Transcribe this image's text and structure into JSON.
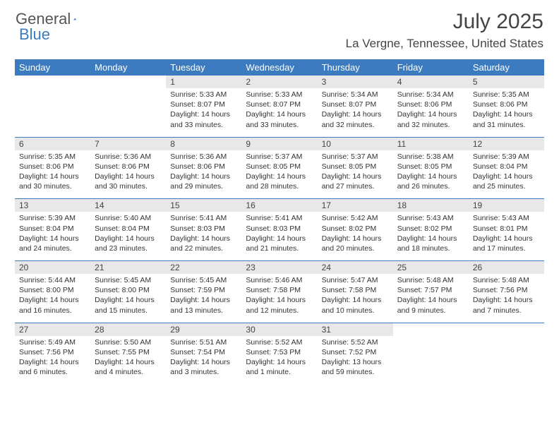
{
  "logo": {
    "text_a": "General",
    "text_b": "Blue"
  },
  "title": "July 2025",
  "location": "La Vergne, Tennessee, United States",
  "colors": {
    "header_bg": "#3c7bbf",
    "header_text": "#ffffff",
    "date_bg": "#e8e8e8",
    "rule": "#3c7bbf",
    "body_text": "#333333",
    "title_text": "#444444"
  },
  "day_names": [
    "Sunday",
    "Monday",
    "Tuesday",
    "Wednesday",
    "Thursday",
    "Friday",
    "Saturday"
  ],
  "weeks": [
    [
      null,
      null,
      {
        "d": "1",
        "sr": "5:33 AM",
        "ss": "8:07 PM",
        "dl": "14 hours and 33 minutes."
      },
      {
        "d": "2",
        "sr": "5:33 AM",
        "ss": "8:07 PM",
        "dl": "14 hours and 33 minutes."
      },
      {
        "d": "3",
        "sr": "5:34 AM",
        "ss": "8:07 PM",
        "dl": "14 hours and 32 minutes."
      },
      {
        "d": "4",
        "sr": "5:34 AM",
        "ss": "8:06 PM",
        "dl": "14 hours and 32 minutes."
      },
      {
        "d": "5",
        "sr": "5:35 AM",
        "ss": "8:06 PM",
        "dl": "14 hours and 31 minutes."
      }
    ],
    [
      {
        "d": "6",
        "sr": "5:35 AM",
        "ss": "8:06 PM",
        "dl": "14 hours and 30 minutes."
      },
      {
        "d": "7",
        "sr": "5:36 AM",
        "ss": "8:06 PM",
        "dl": "14 hours and 30 minutes."
      },
      {
        "d": "8",
        "sr": "5:36 AM",
        "ss": "8:06 PM",
        "dl": "14 hours and 29 minutes."
      },
      {
        "d": "9",
        "sr": "5:37 AM",
        "ss": "8:05 PM",
        "dl": "14 hours and 28 minutes."
      },
      {
        "d": "10",
        "sr": "5:37 AM",
        "ss": "8:05 PM",
        "dl": "14 hours and 27 minutes."
      },
      {
        "d": "11",
        "sr": "5:38 AM",
        "ss": "8:05 PM",
        "dl": "14 hours and 26 minutes."
      },
      {
        "d": "12",
        "sr": "5:39 AM",
        "ss": "8:04 PM",
        "dl": "14 hours and 25 minutes."
      }
    ],
    [
      {
        "d": "13",
        "sr": "5:39 AM",
        "ss": "8:04 PM",
        "dl": "14 hours and 24 minutes."
      },
      {
        "d": "14",
        "sr": "5:40 AM",
        "ss": "8:04 PM",
        "dl": "14 hours and 23 minutes."
      },
      {
        "d": "15",
        "sr": "5:41 AM",
        "ss": "8:03 PM",
        "dl": "14 hours and 22 minutes."
      },
      {
        "d": "16",
        "sr": "5:41 AM",
        "ss": "8:03 PM",
        "dl": "14 hours and 21 minutes."
      },
      {
        "d": "17",
        "sr": "5:42 AM",
        "ss": "8:02 PM",
        "dl": "14 hours and 20 minutes."
      },
      {
        "d": "18",
        "sr": "5:43 AM",
        "ss": "8:02 PM",
        "dl": "14 hours and 18 minutes."
      },
      {
        "d": "19",
        "sr": "5:43 AM",
        "ss": "8:01 PM",
        "dl": "14 hours and 17 minutes."
      }
    ],
    [
      {
        "d": "20",
        "sr": "5:44 AM",
        "ss": "8:00 PM",
        "dl": "14 hours and 16 minutes."
      },
      {
        "d": "21",
        "sr": "5:45 AM",
        "ss": "8:00 PM",
        "dl": "14 hours and 15 minutes."
      },
      {
        "d": "22",
        "sr": "5:45 AM",
        "ss": "7:59 PM",
        "dl": "14 hours and 13 minutes."
      },
      {
        "d": "23",
        "sr": "5:46 AM",
        "ss": "7:58 PM",
        "dl": "14 hours and 12 minutes."
      },
      {
        "d": "24",
        "sr": "5:47 AM",
        "ss": "7:58 PM",
        "dl": "14 hours and 10 minutes."
      },
      {
        "d": "25",
        "sr": "5:48 AM",
        "ss": "7:57 PM",
        "dl": "14 hours and 9 minutes."
      },
      {
        "d": "26",
        "sr": "5:48 AM",
        "ss": "7:56 PM",
        "dl": "14 hours and 7 minutes."
      }
    ],
    [
      {
        "d": "27",
        "sr": "5:49 AM",
        "ss": "7:56 PM",
        "dl": "14 hours and 6 minutes."
      },
      {
        "d": "28",
        "sr": "5:50 AM",
        "ss": "7:55 PM",
        "dl": "14 hours and 4 minutes."
      },
      {
        "d": "29",
        "sr": "5:51 AM",
        "ss": "7:54 PM",
        "dl": "14 hours and 3 minutes."
      },
      {
        "d": "30",
        "sr": "5:52 AM",
        "ss": "7:53 PM",
        "dl": "14 hours and 1 minute."
      },
      {
        "d": "31",
        "sr": "5:52 AM",
        "ss": "7:52 PM",
        "dl": "13 hours and 59 minutes."
      },
      null,
      null
    ]
  ],
  "labels": {
    "sunrise": "Sunrise:",
    "sunset": "Sunset:",
    "daylight": "Daylight:"
  }
}
